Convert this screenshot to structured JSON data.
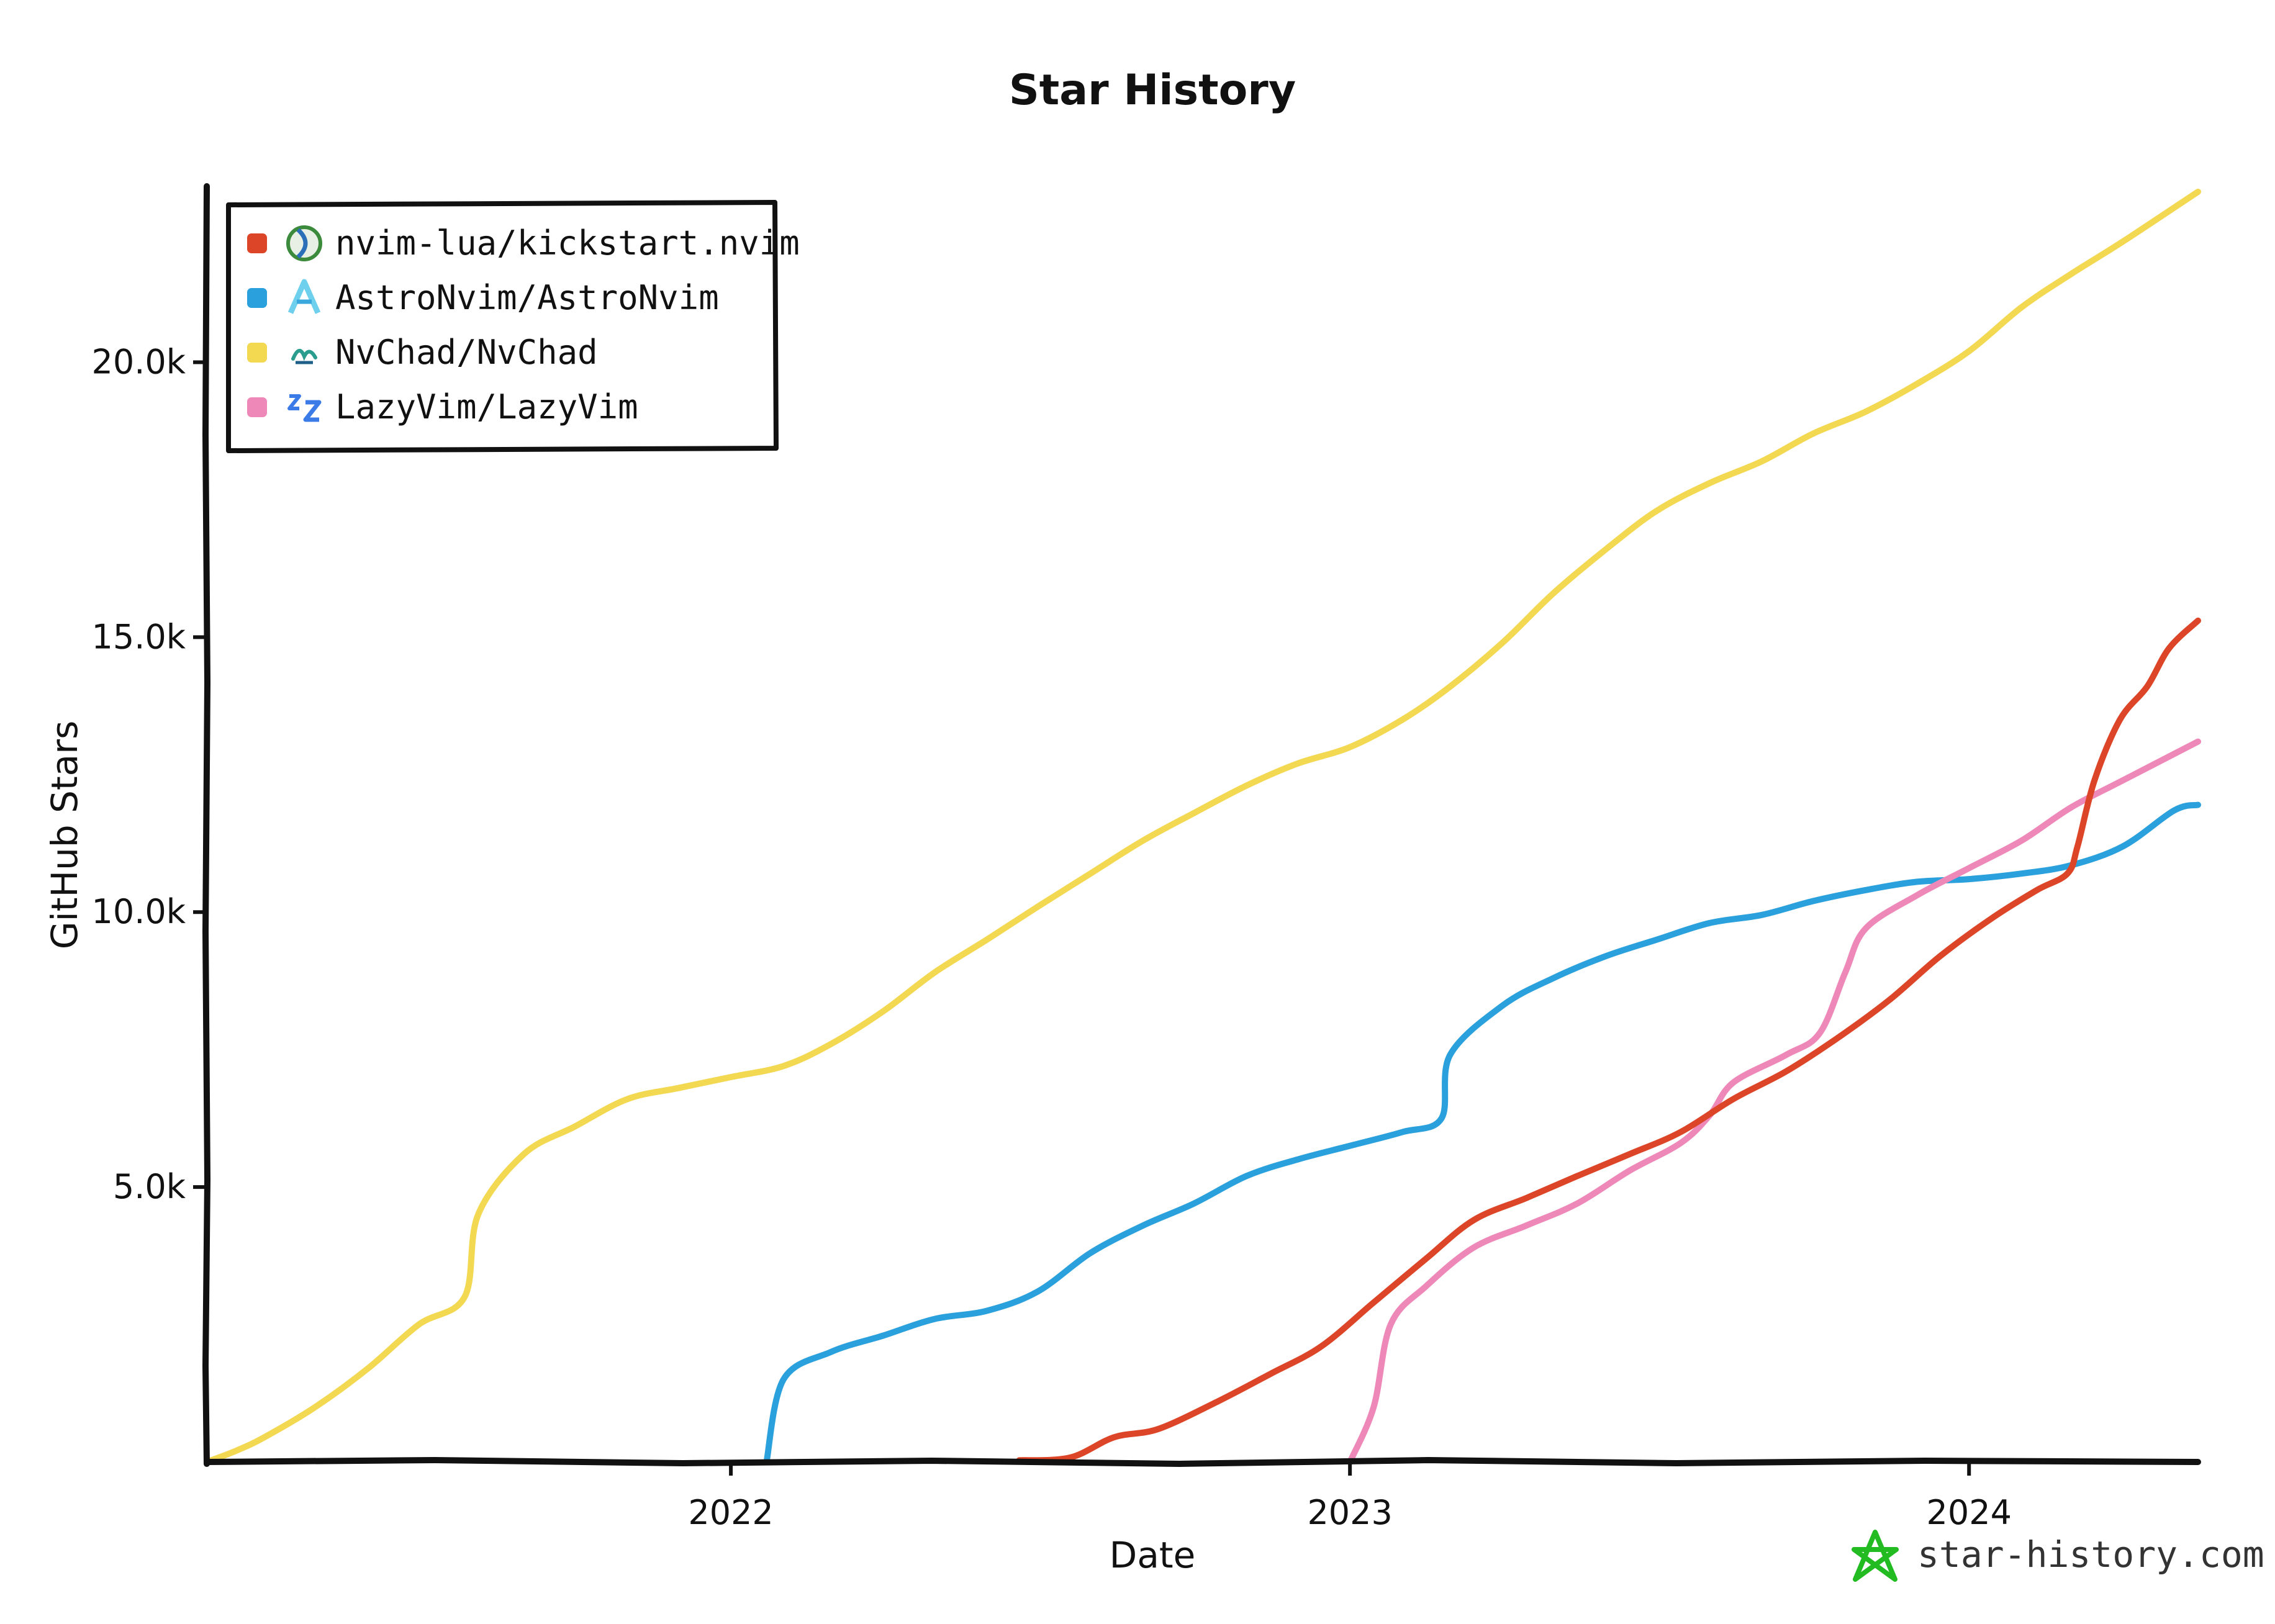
{
  "chart_data": {
    "type": "line",
    "title": "Star History",
    "xlabel": "Date",
    "ylabel": "GitHub Stars",
    "x_type": "date",
    "xlim": [
      "2021-02-26",
      "2024-05-15"
    ],
    "ylim": [
      0,
      23200
    ],
    "x_ticks": [
      {
        "date": "2022-01-01",
        "label": "2022"
      },
      {
        "date": "2023-01-01",
        "label": "2023"
      },
      {
        "date": "2024-01-01",
        "label": "2024"
      }
    ],
    "y_ticks": [
      {
        "value": 5000,
        "label": "5.0k"
      },
      {
        "value": 10000,
        "label": "10.0k"
      },
      {
        "value": 15000,
        "label": "15.0k"
      },
      {
        "value": 20000,
        "label": "20.0k"
      }
    ],
    "grid": false,
    "legend_position": "top-left",
    "watermark": "star-history.com",
    "series": [
      {
        "name": "nvim-lua/kickstart.nvim",
        "color": "#dd4528",
        "icon": "kickstart-avatar-icon",
        "points": [
          [
            "2022-06-20",
            30
          ],
          [
            "2022-07-20",
            80
          ],
          [
            "2022-08-15",
            450
          ],
          [
            "2022-09-10",
            600
          ],
          [
            "2022-10-15",
            1100
          ],
          [
            "2022-11-15",
            1600
          ],
          [
            "2022-12-15",
            2100
          ],
          [
            "2023-01-15",
            2900
          ],
          [
            "2023-02-15",
            3700
          ],
          [
            "2023-03-15",
            4400
          ],
          [
            "2023-04-15",
            4800
          ],
          [
            "2023-05-15",
            5200
          ],
          [
            "2023-06-15",
            5600
          ],
          [
            "2023-07-15",
            6000
          ],
          [
            "2023-08-15",
            6600
          ],
          [
            "2023-09-15",
            7100
          ],
          [
            "2023-10-15",
            7700
          ],
          [
            "2023-11-15",
            8400
          ],
          [
            "2023-12-15",
            9200
          ],
          [
            "2024-01-15",
            9900
          ],
          [
            "2024-02-10",
            10400
          ],
          [
            "2024-02-28",
            10700
          ],
          [
            "2024-03-05",
            11200
          ],
          [
            "2024-03-15",
            12400
          ],
          [
            "2024-03-30",
            13500
          ],
          [
            "2024-04-15",
            14100
          ],
          [
            "2024-04-28",
            14800
          ],
          [
            "2024-05-15",
            15300
          ]
        ]
      },
      {
        "name": "AstroNvim/AstroNvim",
        "color": "#2aa0dc",
        "icon": "astronvim-logo-icon",
        "points": [
          [
            "2022-01-22",
            0
          ],
          [
            "2022-02-01",
            1500
          ],
          [
            "2022-03-01",
            2000
          ],
          [
            "2022-04-01",
            2300
          ],
          [
            "2022-05-01",
            2600
          ],
          [
            "2022-06-01",
            2750
          ],
          [
            "2022-07-01",
            3100
          ],
          [
            "2022-08-01",
            3800
          ],
          [
            "2022-09-01",
            4300
          ],
          [
            "2022-10-01",
            4700
          ],
          [
            "2022-11-01",
            5200
          ],
          [
            "2022-12-01",
            5500
          ],
          [
            "2023-01-01",
            5750
          ],
          [
            "2023-02-01",
            6000
          ],
          [
            "2023-02-24",
            6250
          ],
          [
            "2023-03-01",
            7400
          ],
          [
            "2023-04-01",
            8300
          ],
          [
            "2023-05-01",
            8800
          ],
          [
            "2023-06-01",
            9200
          ],
          [
            "2023-07-01",
            9500
          ],
          [
            "2023-08-01",
            9800
          ],
          [
            "2023-09-01",
            9950
          ],
          [
            "2023-10-01",
            10200
          ],
          [
            "2023-11-01",
            10400
          ],
          [
            "2023-12-01",
            10550
          ],
          [
            "2024-01-01",
            10600
          ],
          [
            "2024-02-01",
            10700
          ],
          [
            "2024-03-01",
            10850
          ],
          [
            "2024-04-01",
            11200
          ],
          [
            "2024-05-01",
            11850
          ],
          [
            "2024-05-15",
            11950
          ]
        ]
      },
      {
        "name": "NvChad/NvChad",
        "color": "#f3d852",
        "icon": "nvchad-logo-icon",
        "points": [
          [
            "2021-02-26",
            0
          ],
          [
            "2021-03-15",
            200
          ],
          [
            "2021-04-01",
            450
          ],
          [
            "2021-05-01",
            1000
          ],
          [
            "2021-06-01",
            1700
          ],
          [
            "2021-07-01",
            2500
          ],
          [
            "2021-07-28",
            3000
          ],
          [
            "2021-08-05",
            4500
          ],
          [
            "2021-09-01",
            5600
          ],
          [
            "2021-10-01",
            6100
          ],
          [
            "2021-11-01",
            6600
          ],
          [
            "2021-12-01",
            6800
          ],
          [
            "2022-01-01",
            7000
          ],
          [
            "2022-02-01",
            7200
          ],
          [
            "2022-03-01",
            7600
          ],
          [
            "2022-04-01",
            8200
          ],
          [
            "2022-05-01",
            8900
          ],
          [
            "2022-06-01",
            9500
          ],
          [
            "2022-07-01",
            10100
          ],
          [
            "2022-08-01",
            10700
          ],
          [
            "2022-09-01",
            11300
          ],
          [
            "2022-10-01",
            11800
          ],
          [
            "2022-11-01",
            12300
          ],
          [
            "2022-12-01",
            12700
          ],
          [
            "2023-01-01",
            13000
          ],
          [
            "2023-02-01",
            13500
          ],
          [
            "2023-03-01",
            14100
          ],
          [
            "2023-04-01",
            14900
          ],
          [
            "2023-05-01",
            15800
          ],
          [
            "2023-06-01",
            16600
          ],
          [
            "2023-07-01",
            17300
          ],
          [
            "2023-08-01",
            17800
          ],
          [
            "2023-09-01",
            18200
          ],
          [
            "2023-10-01",
            18700
          ],
          [
            "2023-11-01",
            19100
          ],
          [
            "2023-12-01",
            19600
          ],
          [
            "2024-01-01",
            20200
          ],
          [
            "2024-02-01",
            21000
          ],
          [
            "2024-03-01",
            21600
          ],
          [
            "2024-04-01",
            22200
          ],
          [
            "2024-05-15",
            23100
          ]
        ]
      },
      {
        "name": "LazyVim/LazyVim",
        "color": "#ee88b8",
        "icon": "lazyvim-logo-icon",
        "points": [
          [
            "2023-01-01",
            0
          ],
          [
            "2023-01-15",
            1000
          ],
          [
            "2023-01-25",
            2500
          ],
          [
            "2023-02-15",
            3200
          ],
          [
            "2023-03-15",
            3900
          ],
          [
            "2023-04-15",
            4300
          ],
          [
            "2023-05-15",
            4700
          ],
          [
            "2023-06-15",
            5300
          ],
          [
            "2023-07-15",
            5800
          ],
          [
            "2023-08-01",
            6300
          ],
          [
            "2023-08-15",
            6900
          ],
          [
            "2023-09-15",
            7400
          ],
          [
            "2023-10-05",
            7800
          ],
          [
            "2023-10-20",
            8900
          ],
          [
            "2023-11-01",
            9700
          ],
          [
            "2023-12-01",
            10300
          ],
          [
            "2024-01-01",
            10800
          ],
          [
            "2024-02-01",
            11300
          ],
          [
            "2024-03-01",
            11900
          ],
          [
            "2024-04-01",
            12400
          ],
          [
            "2024-05-15",
            13100
          ]
        ]
      }
    ]
  }
}
